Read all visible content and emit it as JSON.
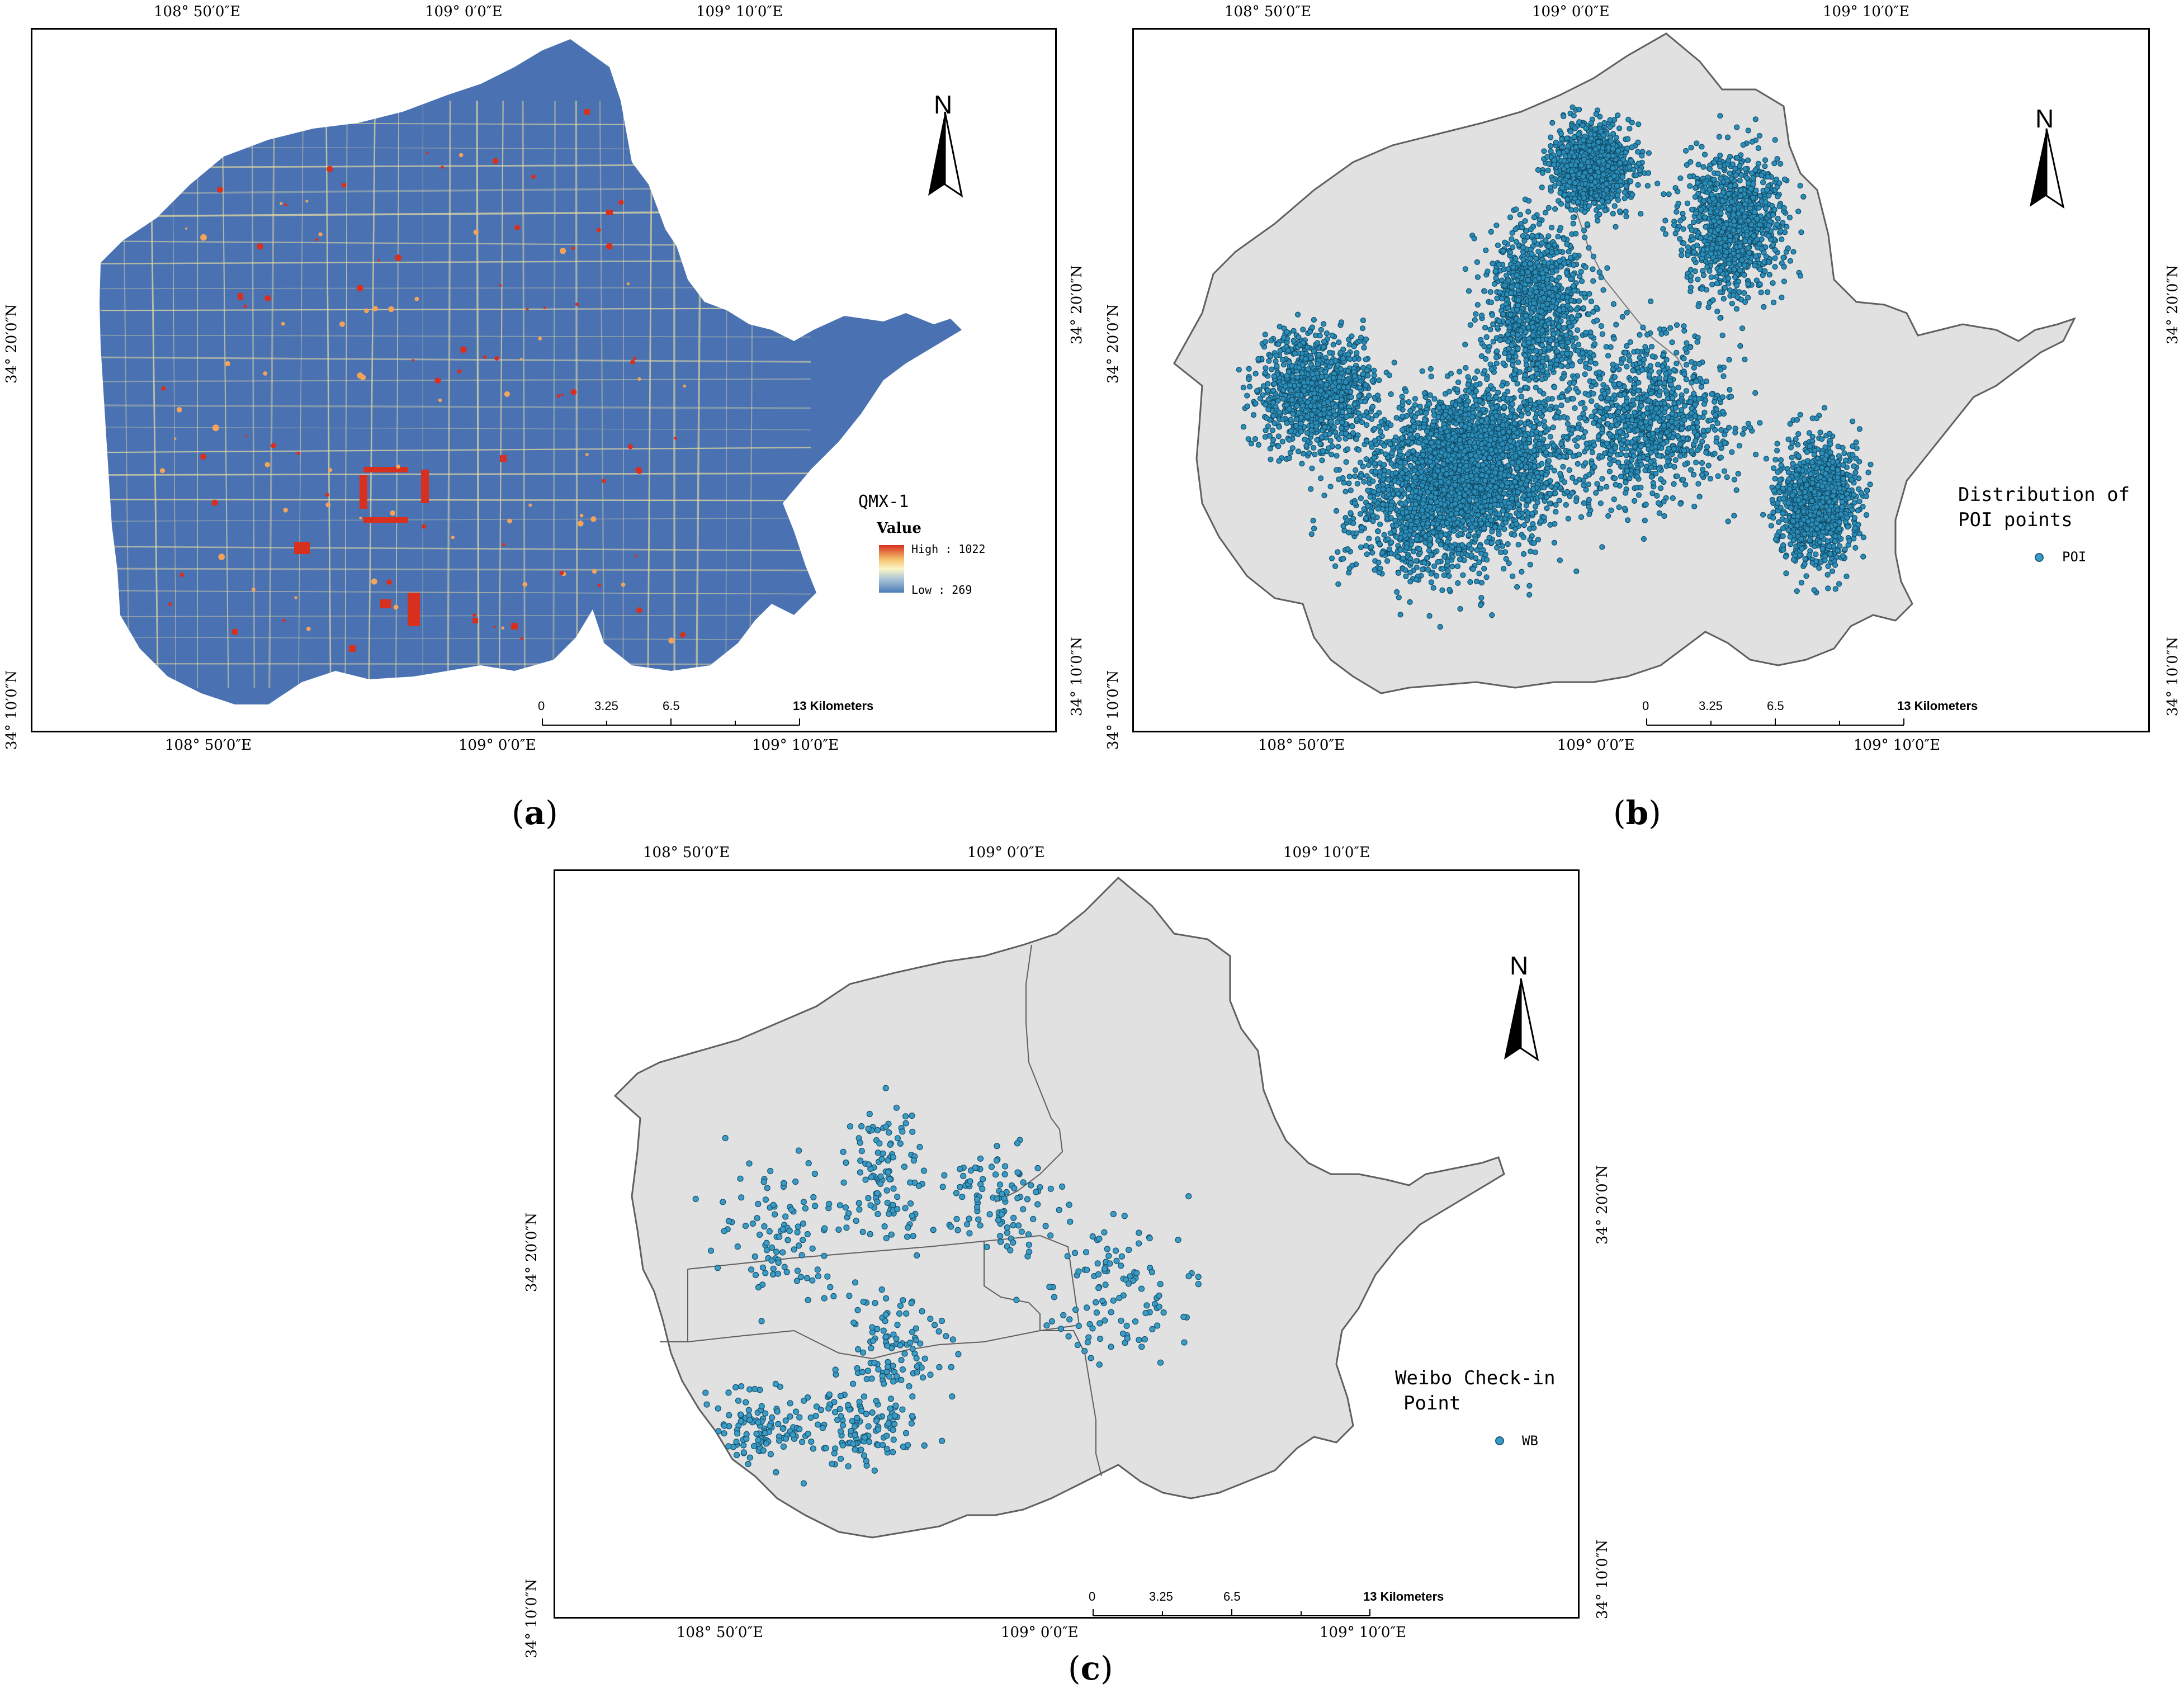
{
  "panels": {
    "a": {
      "caption": "a",
      "top_lon_labels": [
        "108° 50′0″E",
        "109° 0′0″E",
        "109° 10′0″E"
      ],
      "bottom_lon_labels": [
        "108° 50′0″E",
        "109° 0′0″E",
        "109° 10′0″E"
      ],
      "left_lat_labels": [
        "34° 20′0″N",
        "34° 10′0″N"
      ],
      "right_lat_labels": [
        "34° 20′0″N",
        "34° 10′0″N"
      ],
      "north_label": "N",
      "legend": {
        "title": "QMX-1",
        "subtitle": "Value",
        "high_label": "High : 1022",
        "low_label": "Low : 269",
        "colors": [
          "#d7301f",
          "#f4c26e",
          "#fbf4c6",
          "#a9c4d7",
          "#4a7bb7"
        ]
      },
      "scale": {
        "ticks": [
          "0",
          "3.25",
          "6.5",
          "13 Kilometers"
        ]
      },
      "colors": {
        "base": "#4a72b2",
        "road": "#e6dba0",
        "hot": "#d7301f"
      }
    },
    "b": {
      "caption": "b",
      "top_lon_labels": [
        "108° 50′0″E",
        "109° 0′0″E",
        "109° 10′0″E"
      ],
      "bottom_lon_labels": [
        "108° 50′0″E",
        "109° 0′0″E",
        "109° 10′0″E"
      ],
      "left_lat_labels": [
        "34° 20′0″N",
        "34° 10′0″N"
      ],
      "right_lat_labels": [
        "34° 20′0″N",
        "34° 10′0″N"
      ],
      "north_label": "N",
      "legend": {
        "title_line1": "Distribution of",
        "title_line2": "POI points",
        "item": "POI",
        "color": "#3a9cc6"
      },
      "scale": {
        "ticks": [
          "0",
          "3.25",
          "6.5",
          "13 Kilometers"
        ]
      },
      "colors": {
        "region": "#e1e1e1",
        "point": "#2b8cb7",
        "outline": "#5f5f5f"
      }
    },
    "c": {
      "caption": "c",
      "top_lon_labels": [
        "108° 50′0″E",
        "109° 0′0″E",
        "109° 10′0″E"
      ],
      "bottom_lon_labels": [
        "108° 50′0″E",
        "109° 0′0″E",
        "109° 10′0″E"
      ],
      "left_lat_labels": [
        "34° 20′0″N",
        "34° 10′0″N"
      ],
      "right_lat_labels": [
        "34° 20′0″N",
        "34° 10′0″N"
      ],
      "north_label": "N",
      "legend": {
        "title_line1": "Weibo Check-in",
        "title_line2": "Point",
        "item": "WB",
        "color": "#3a9cc6"
      },
      "scale": {
        "ticks": [
          "0",
          "3.25",
          "6.5",
          "13 Kilometers"
        ]
      },
      "colors": {
        "region": "#e1e1e1",
        "point": "#3a9cc6",
        "outline": "#5f5f5f"
      }
    }
  }
}
